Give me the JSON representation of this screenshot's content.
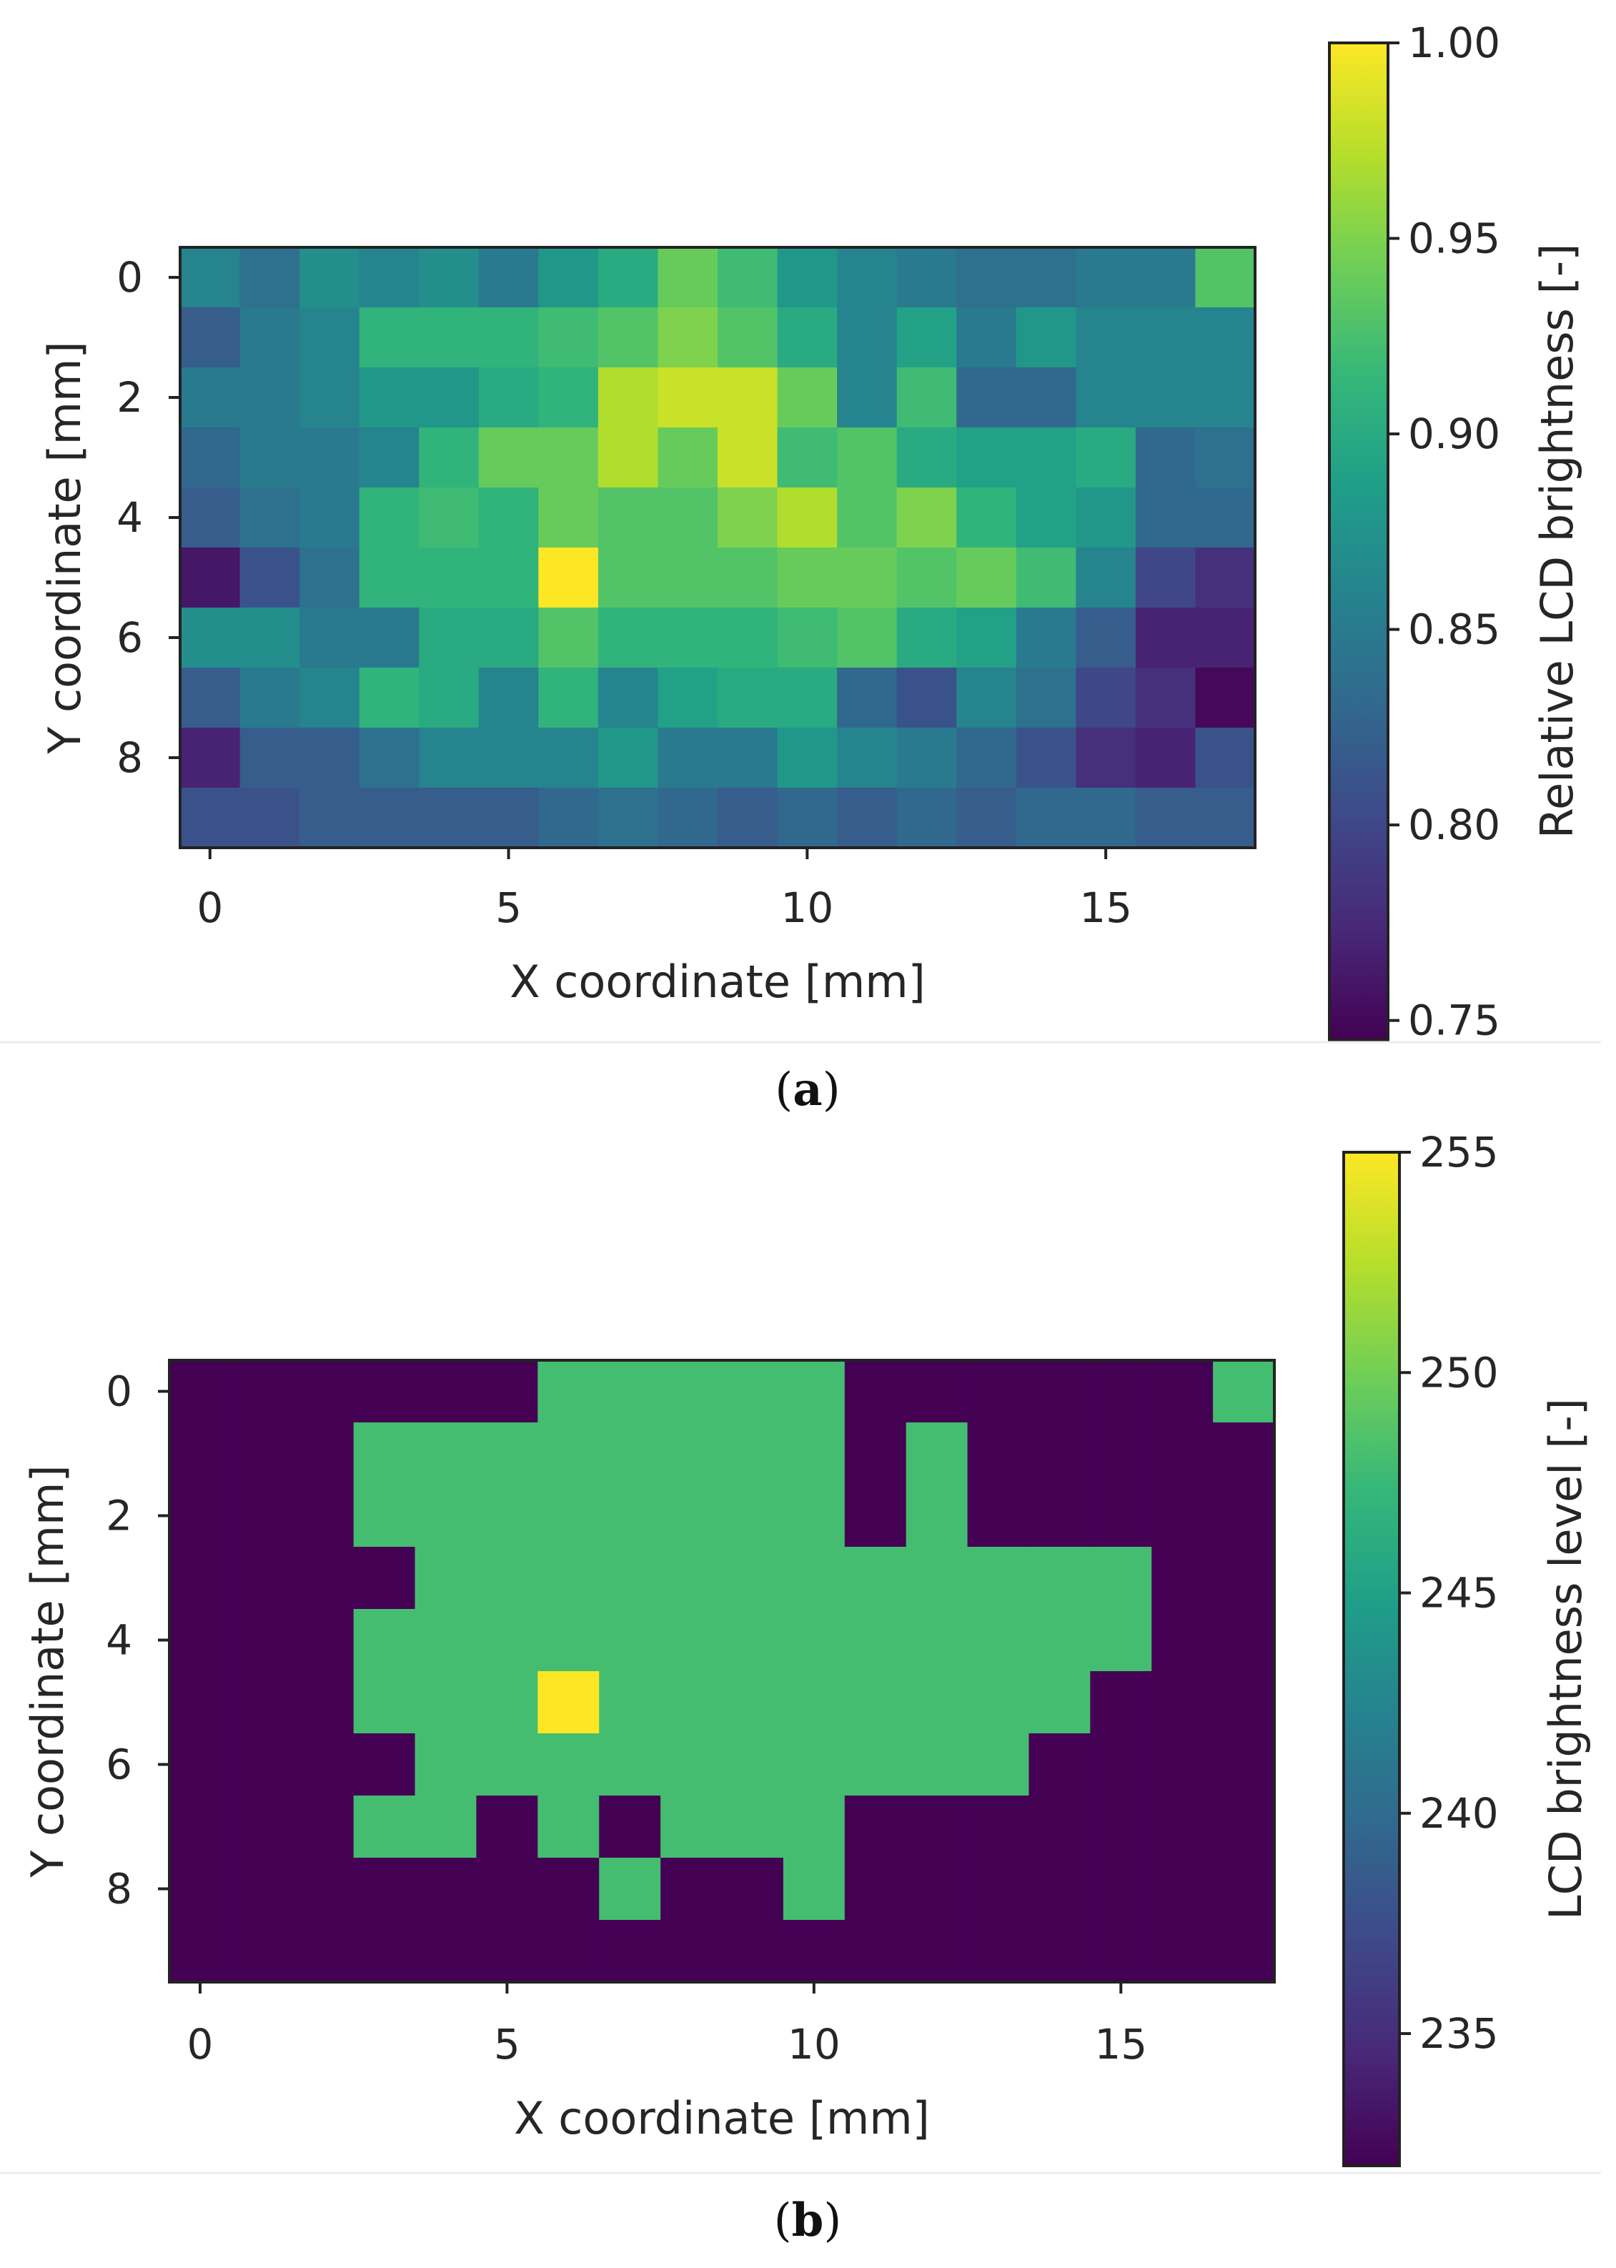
{
  "colormap": [
    "#440154",
    "#482878",
    "#3e4989",
    "#31688e",
    "#26828e",
    "#1f9e89",
    "#35b779",
    "#6ece58",
    "#b5de2b",
    "#fde725"
  ],
  "chart_data": [
    {
      "panel_label": "a",
      "type": "heatmap",
      "xlabel": "X coordinate [mm]",
      "ylabel": "Y coordinate [mm]",
      "colorbar_label": "Relative LCD brightness [-]",
      "xticks": [
        0,
        5,
        10,
        15
      ],
      "yticks": [
        0,
        2,
        4,
        6,
        8
      ],
      "xtick_labels": [
        "0",
        "5",
        "10",
        "15"
      ],
      "ytick_labels": [
        "0",
        "2",
        "4",
        "6",
        "8"
      ],
      "x_range": [
        -0.5,
        17.5
      ],
      "y_range": [
        -0.5,
        9.5
      ],
      "colorbar_range": [
        0.745,
        1.0
      ],
      "colorbar_ticks": [
        1.0,
        0.95,
        0.9,
        0.85,
        0.8,
        0.75
      ],
      "colorbar_tick_labels": [
        "1.00",
        "0.95",
        "0.90",
        "0.85",
        "0.80",
        "0.75"
      ],
      "z": [
        [
          0.86,
          0.84,
          0.87,
          0.86,
          0.87,
          0.85,
          0.88,
          0.9,
          0.94,
          0.92,
          0.88,
          0.86,
          0.85,
          0.84,
          0.84,
          0.85,
          0.85,
          0.93
        ],
        [
          0.82,
          0.85,
          0.86,
          0.91,
          0.91,
          0.91,
          0.92,
          0.93,
          0.95,
          0.93,
          0.9,
          0.86,
          0.89,
          0.85,
          0.88,
          0.86,
          0.86,
          0.86
        ],
        [
          0.85,
          0.85,
          0.86,
          0.88,
          0.88,
          0.9,
          0.91,
          0.97,
          0.98,
          0.98,
          0.94,
          0.86,
          0.92,
          0.83,
          0.83,
          0.86,
          0.86,
          0.86
        ],
        [
          0.83,
          0.85,
          0.85,
          0.86,
          0.91,
          0.94,
          0.94,
          0.97,
          0.94,
          0.98,
          0.92,
          0.93,
          0.9,
          0.89,
          0.89,
          0.9,
          0.83,
          0.84
        ],
        [
          0.82,
          0.84,
          0.85,
          0.91,
          0.92,
          0.91,
          0.94,
          0.93,
          0.93,
          0.95,
          0.97,
          0.93,
          0.95,
          0.91,
          0.89,
          0.88,
          0.83,
          0.83
        ],
        [
          0.76,
          0.81,
          0.84,
          0.91,
          0.91,
          0.91,
          1.0,
          0.93,
          0.93,
          0.93,
          0.94,
          0.94,
          0.93,
          0.94,
          0.92,
          0.86,
          0.8,
          0.78
        ],
        [
          0.87,
          0.87,
          0.85,
          0.85,
          0.9,
          0.9,
          0.93,
          0.91,
          0.91,
          0.91,
          0.92,
          0.93,
          0.9,
          0.89,
          0.85,
          0.82,
          0.77,
          0.77
        ],
        [
          0.82,
          0.85,
          0.86,
          0.91,
          0.9,
          0.86,
          0.91,
          0.86,
          0.89,
          0.9,
          0.9,
          0.83,
          0.81,
          0.86,
          0.84,
          0.8,
          0.78,
          0.75
        ],
        [
          0.77,
          0.82,
          0.82,
          0.84,
          0.86,
          0.86,
          0.86,
          0.88,
          0.85,
          0.85,
          0.88,
          0.86,
          0.85,
          0.83,
          0.81,
          0.78,
          0.77,
          0.81
        ],
        [
          0.81,
          0.81,
          0.82,
          0.82,
          0.82,
          0.82,
          0.83,
          0.84,
          0.83,
          0.82,
          0.83,
          0.82,
          0.83,
          0.82,
          0.83,
          0.83,
          0.82,
          0.82
        ]
      ]
    },
    {
      "panel_label": "b",
      "type": "heatmap",
      "xlabel": "X coordinate [mm]",
      "ylabel": "Y coordinate [mm]",
      "colorbar_label": "LCD brightness level [-]",
      "xticks": [
        0,
        5,
        10,
        15
      ],
      "yticks": [
        0,
        2,
        4,
        6,
        8
      ],
      "xtick_labels": [
        "0",
        "5",
        "10",
        "15"
      ],
      "ytick_labels": [
        "0",
        "2",
        "4",
        "6",
        "8"
      ],
      "x_range": [
        -0.5,
        17.5
      ],
      "y_range": [
        -0.5,
        9.5
      ],
      "colorbar_range": [
        232,
        255
      ],
      "colorbar_ticks": [
        255,
        250,
        245,
        240,
        235
      ],
      "colorbar_tick_labels": [
        "255",
        "250",
        "245",
        "240",
        "235"
      ],
      "z": [
        [
          232,
          232,
          232,
          232,
          232,
          232,
          248,
          248,
          248,
          248,
          248,
          232,
          232,
          232,
          232,
          232,
          232,
          248
        ],
        [
          232,
          232,
          232,
          248,
          248,
          248,
          248,
          248,
          248,
          248,
          248,
          232,
          248,
          232,
          232,
          232,
          232,
          232
        ],
        [
          232,
          232,
          232,
          248,
          248,
          248,
          248,
          248,
          248,
          248,
          248,
          232,
          248,
          232,
          232,
          232,
          232,
          232
        ],
        [
          232,
          232,
          232,
          232,
          248,
          248,
          248,
          248,
          248,
          248,
          248,
          248,
          248,
          248,
          248,
          248,
          232,
          232
        ],
        [
          232,
          232,
          232,
          248,
          248,
          248,
          248,
          248,
          248,
          248,
          248,
          248,
          248,
          248,
          248,
          248,
          232,
          232
        ],
        [
          232,
          232,
          232,
          248,
          248,
          248,
          255,
          248,
          248,
          248,
          248,
          248,
          248,
          248,
          248,
          232,
          232,
          232
        ],
        [
          232,
          232,
          232,
          232,
          248,
          248,
          248,
          248,
          248,
          248,
          248,
          248,
          248,
          248,
          232,
          232,
          232,
          232
        ],
        [
          232,
          232,
          232,
          248,
          248,
          232,
          248,
          232,
          248,
          248,
          248,
          232,
          232,
          232,
          232,
          232,
          232,
          232
        ],
        [
          232,
          232,
          232,
          232,
          232,
          232,
          232,
          248,
          232,
          232,
          248,
          232,
          232,
          232,
          232,
          232,
          232,
          232
        ],
        [
          232,
          232,
          232,
          232,
          232,
          232,
          232,
          232,
          232,
          232,
          232,
          232,
          232,
          232,
          232,
          232,
          232,
          232
        ]
      ]
    }
  ]
}
